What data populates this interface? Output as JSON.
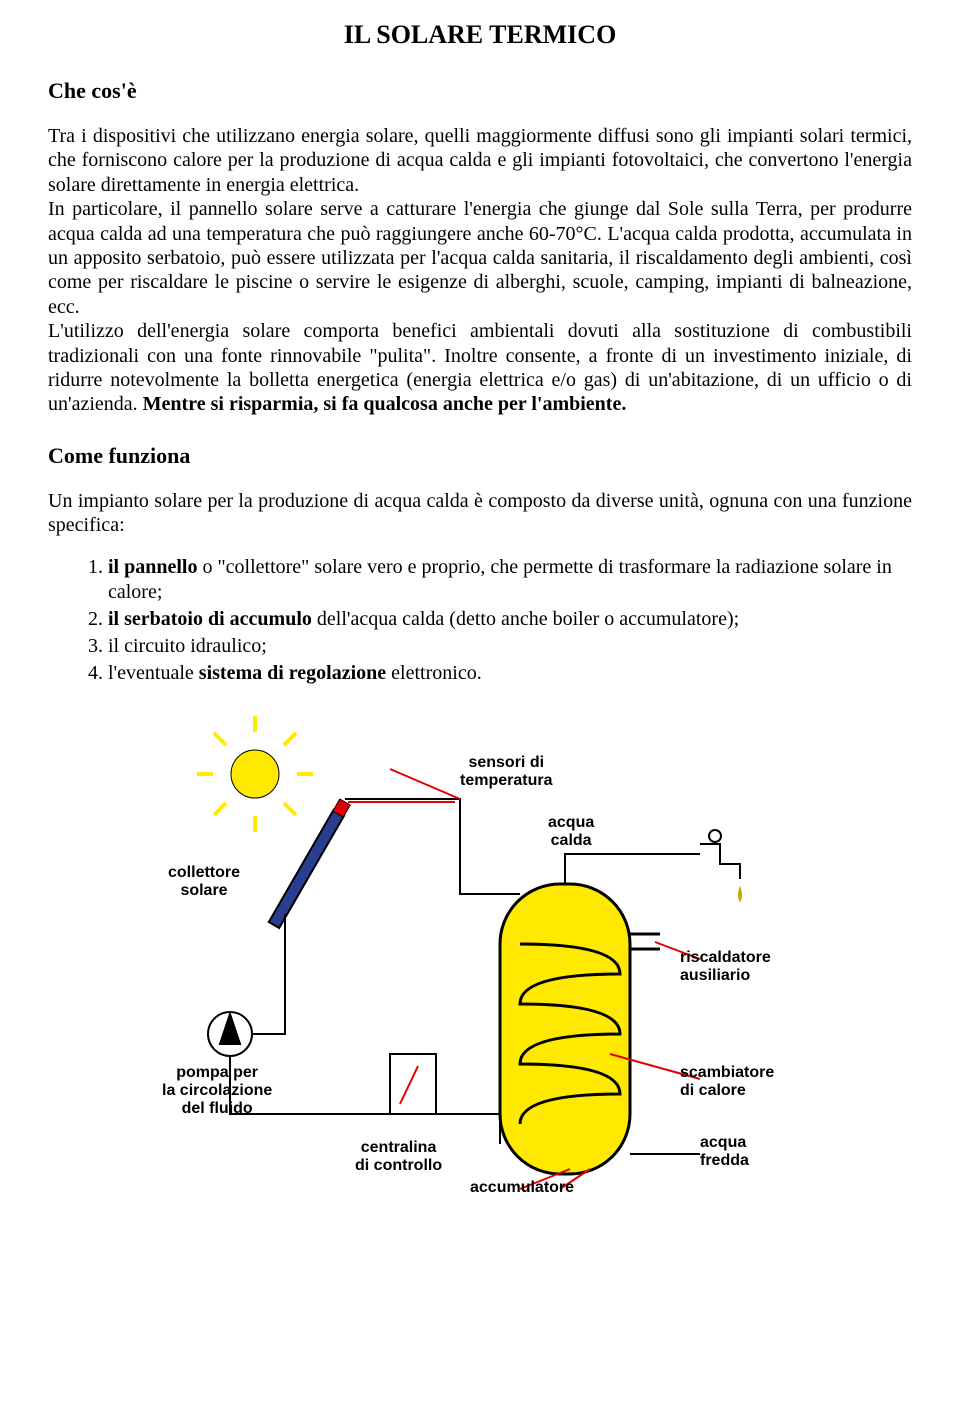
{
  "title": "IL SOLARE TERMICO",
  "section1": {
    "heading": "Che cos'è",
    "p1a": "Tra i dispositivi che utilizzano energia solare, quelli maggiormente diffusi sono gli impianti solari termici, che forniscono calore per la produzione di acqua calda e gli impianti fotovoltaici, che convertono l'energia solare direttamente in energia elettrica.",
    "p1b": "In particolare, il pannello solare serve a catturare l'energia che giunge dal Sole sulla Terra, per produrre acqua calda ad una temperatura che può raggiungere anche 60-70°C. L'acqua calda prodotta, accumulata in un apposito serbatoio, può essere utilizzata per l'acqua calda sanitaria, il riscaldamento degli ambienti, così come per riscaldare le piscine o servire le esigenze di alberghi, scuole, camping, impianti di balneazione, ecc.",
    "p1c": "L'utilizzo dell'energia solare comporta benefici ambientali dovuti alla sostituzione di combustibili tradizionali con una fonte rinnovabile \"pulita\". Inoltre consente, a fronte di un investimento iniziale, di ridurre notevolmente la bolletta energetica (energia elettrica e/o gas) di un'abitazione, di un ufficio o di un'azienda. ",
    "p1c_bold": "Mentre si risparmia, si fa qualcosa anche per l'ambiente."
  },
  "section2": {
    "heading": "Come funziona",
    "intro": "Un impianto solare per la produzione di acqua calda è composto da diverse unità, ognuna con una funzione specifica:",
    "items": {
      "i1a": "il pannello",
      "i1b": " o \"collettore\" solare vero e proprio, che permette di trasformare la radiazione solare in calore;",
      "i2a": "il serbatoio di accumulo",
      "i2b": " dell'acqua calda (detto anche boiler o accumulatore);",
      "i3": "il circuito idraulico;",
      "i4a": "l'eventuale ",
      "i4b": "sistema di regolazione",
      "i4c": " elettronico."
    }
  },
  "diagram": {
    "labels": {
      "sensori": "sensori di\ntemperatura",
      "collettore": "collettore\nsolare",
      "acqua_calda": "acqua\ncalda",
      "riscaldatore": "riscaldatore\nausiliario",
      "pompa": "pompa per\nla circolazione\ndel fluido",
      "scambiatore": "scambiatore\ndi calore",
      "centralina": "centralina\ndi controllo",
      "acqua_fredda": "acqua\nfredda",
      "accumulatore": "accumulatore"
    },
    "colors": {
      "sun_fill": "#ffe900",
      "sun_stroke": "#d4af00",
      "panel": "#2a3e8f",
      "tank_fill": "#ffe900",
      "tank_stroke": "#000000",
      "pipe": "#000000",
      "hot": "#e50000",
      "blue": "#003399",
      "text": "#000000",
      "label_line": "#e50000",
      "tap": "#000000"
    }
  }
}
